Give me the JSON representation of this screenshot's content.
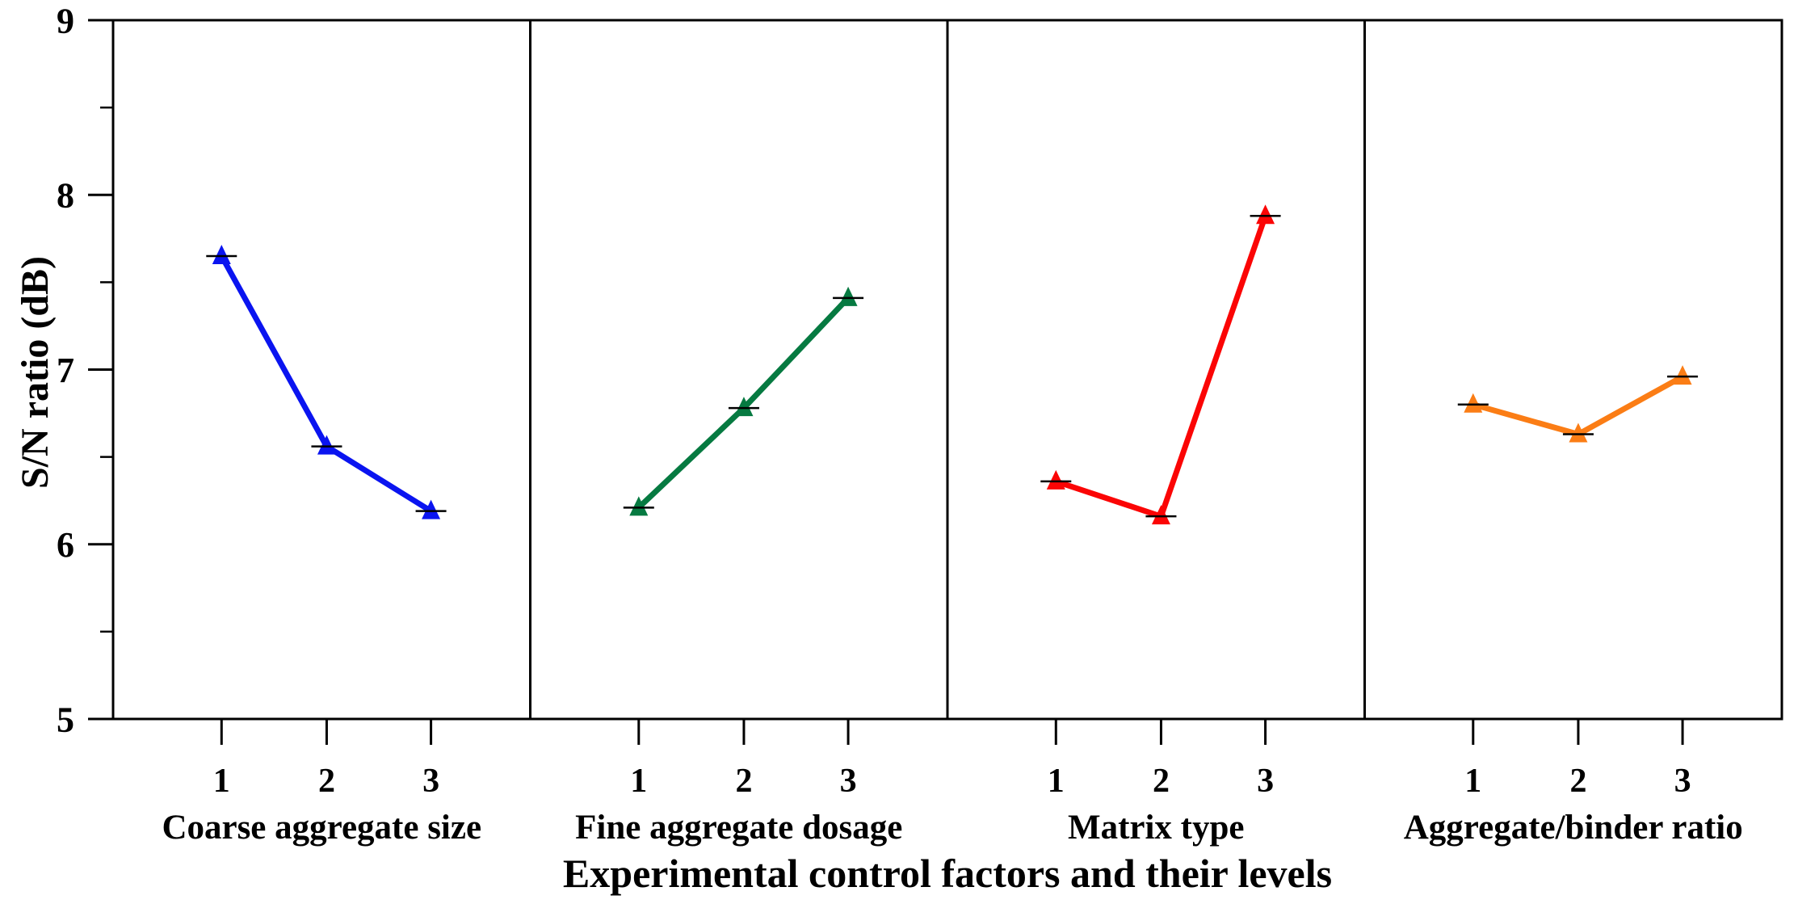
{
  "figure": {
    "ylabel": "S/N ratio (dB)",
    "xlabel": "Experimental control factors and their levels"
  },
  "chart_data": {
    "type": "line",
    "title": "",
    "xlabel": "Experimental control factors and their levels",
    "ylabel": "S/N ratio (dB)",
    "categories": [
      "1",
      "2",
      "3"
    ],
    "ylim": [
      5,
      9
    ],
    "y_major_ticks": [
      9,
      8,
      7,
      6,
      5
    ],
    "y_minor_tick_step": 0.5,
    "marker": "filled-triangle-up",
    "error_cap_color": "#000000",
    "layout": {
      "panels": 4,
      "shared_y_axis": true,
      "grid": false,
      "legend": false,
      "level_positions": [
        0.26,
        0.512,
        0.762
      ]
    },
    "series": [
      {
        "name": "Coarse aggregate size",
        "color": "#0a14f0",
        "values": [
          7.65,
          6.56,
          6.19
        ]
      },
      {
        "name": "Fine aggregate dosage",
        "color": "#067a41",
        "values": [
          6.21,
          6.78,
          7.41
        ]
      },
      {
        "name": "Matrix type",
        "color": "#fb0505",
        "values": [
          6.36,
          6.16,
          7.88
        ]
      },
      {
        "name": "Aggregate/binder ratio",
        "color": "#fb7d15",
        "values": [
          6.8,
          6.63,
          6.96
        ]
      }
    ]
  }
}
